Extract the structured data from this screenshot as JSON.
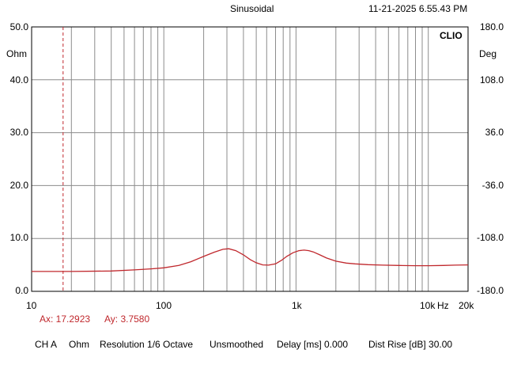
{
  "header": {
    "mode": "Sinusoidal",
    "datetime": "11-21-2025 6.55.43 PM",
    "brand": "CLIO"
  },
  "axes": {
    "left_unit": "Ohm",
    "right_unit": "Deg",
    "left_ticks": [
      "50.0",
      "40.0",
      "30.0",
      "20.0",
      "10.0",
      "0.0"
    ],
    "right_ticks": [
      "180.0",
      "108.0",
      "36.0",
      "-36.0",
      "-108.0",
      "-180.0"
    ],
    "x_ticks": [
      "10",
      "100",
      "1k",
      "10k",
      "Hz",
      "20k"
    ]
  },
  "cursor": {
    "x_label": "Ax: 17.2923",
    "y_label": "Ay: 3.7580",
    "x_value": 17.2923
  },
  "status_bar": {
    "channel": "CH A",
    "unit": "Ohm",
    "resolution": "Resolution 1/6 Octave",
    "smoothing": "Unsmoothed",
    "delay": "Delay [ms] 0.000",
    "dist_rise": "Dist Rise [dB] 30.00"
  },
  "colors": {
    "curve": "#c0282d",
    "grid": "#8c8c8c",
    "cursor": "#c0282d"
  },
  "chart_data": {
    "type": "line",
    "xscale": "log",
    "xlim": [
      10,
      20000
    ],
    "ylim": [
      0,
      50
    ],
    "y2lim": [
      -180,
      180
    ],
    "grid": true,
    "series": [
      {
        "x": [
          10,
          20,
          40,
          60,
          80,
          100,
          130,
          160,
          200,
          240,
          280,
          310,
          350,
          400,
          450,
          500,
          560,
          620,
          700,
          780,
          850,
          950,
          1050,
          1150,
          1250,
          1350,
          1500,
          1700,
          2000,
          2400,
          2800,
          3500,
          4500,
          6000,
          8000,
          10000,
          13000,
          16000,
          20000
        ],
        "y": [
          3.76,
          3.76,
          3.85,
          4.05,
          4.25,
          4.45,
          4.9,
          5.6,
          6.6,
          7.4,
          7.95,
          8.05,
          7.7,
          6.9,
          6.0,
          5.4,
          5.0,
          4.95,
          5.2,
          5.9,
          6.6,
          7.3,
          7.7,
          7.8,
          7.7,
          7.45,
          6.95,
          6.3,
          5.7,
          5.35,
          5.2,
          5.05,
          4.95,
          4.9,
          4.85,
          4.85,
          4.9,
          4.95,
          5.0
        ]
      }
    ]
  }
}
